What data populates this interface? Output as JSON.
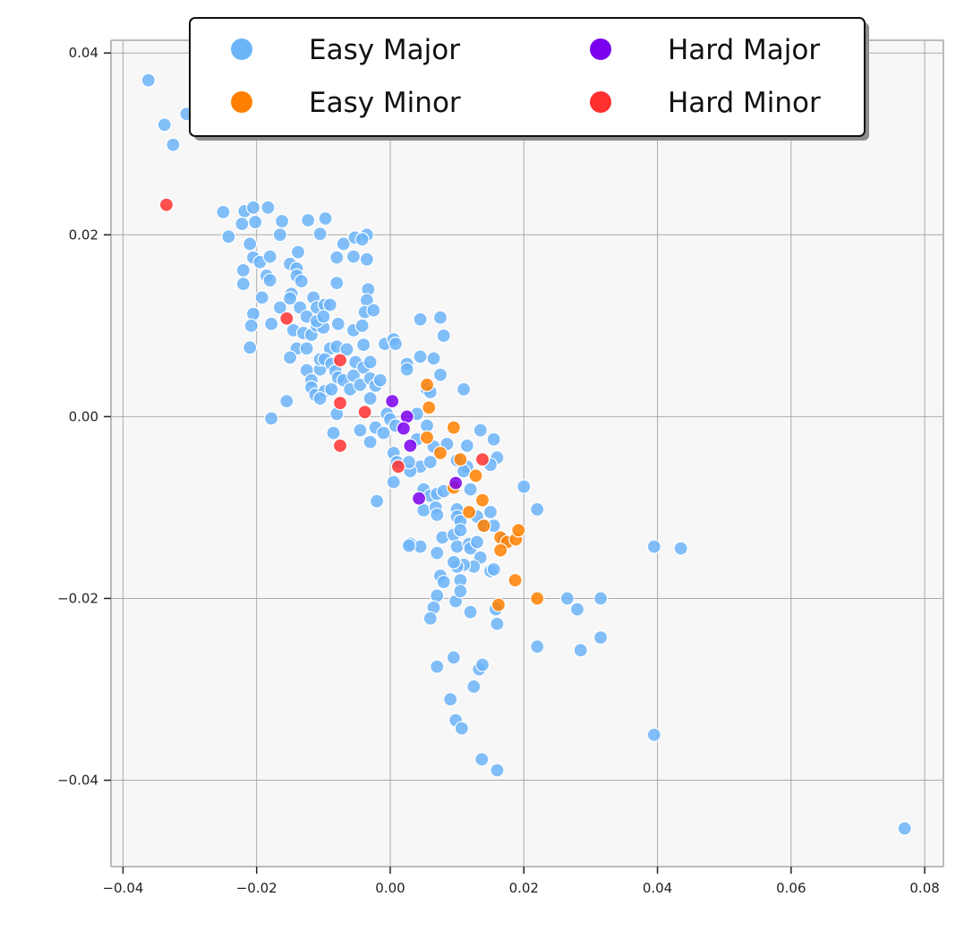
{
  "chart_data": {
    "type": "scatter",
    "title": "",
    "xlabel": "",
    "ylabel": "",
    "xlim": [
      -0.0418,
      0.0828
    ],
    "ylim": [
      -0.0495,
      0.0414
    ],
    "grid": true,
    "legend": {
      "placement": "top-center",
      "columns": 2
    },
    "x_ticks": [
      {
        "value": -0.04,
        "label": "−0.04"
      },
      {
        "value": -0.02,
        "label": "−0.02"
      },
      {
        "value": 0.0,
        "label": "0.00"
      },
      {
        "value": 0.02,
        "label": "0.02"
      },
      {
        "value": 0.04,
        "label": "0.04"
      },
      {
        "value": 0.06,
        "label": "0.06"
      },
      {
        "value": 0.08,
        "label": "0.08"
      }
    ],
    "y_ticks": [
      {
        "value": 0.04,
        "label": "0.04"
      },
      {
        "value": 0.02,
        "label": "0.02"
      },
      {
        "value": 0.0,
        "label": "0.00"
      },
      {
        "value": -0.02,
        "label": "−0.02"
      },
      {
        "value": -0.04,
        "label": "−0.04"
      }
    ],
    "series": [
      {
        "name": "Easy Major",
        "color": "#6cb4f8",
        "points": [
          [
            -0.0362,
            0.037
          ],
          [
            -0.0338,
            0.0321
          ],
          [
            -0.0325,
            0.0299
          ],
          [
            -0.0305,
            0.0333
          ],
          [
            -0.025,
            0.0225
          ],
          [
            -0.0242,
            0.0198
          ],
          [
            -0.0218,
            0.0226
          ],
          [
            -0.0222,
            0.0212
          ],
          [
            -0.0205,
            0.023
          ],
          [
            -0.0202,
            0.0214
          ],
          [
            -0.0183,
            0.023
          ],
          [
            -0.0162,
            0.0215
          ],
          [
            -0.0165,
            0.02
          ],
          [
            -0.0123,
            0.0216
          ],
          [
            -0.0097,
            0.0218
          ],
          [
            -0.0105,
            0.0201
          ],
          [
            -0.021,
            0.019
          ],
          [
            -0.0205,
            0.0175
          ],
          [
            -0.0195,
            0.017
          ],
          [
            -0.018,
            0.0176
          ],
          [
            -0.022,
            0.0161
          ],
          [
            -0.022,
            0.0146
          ],
          [
            -0.0192,
            0.0131
          ],
          [
            -0.0185,
            0.0155
          ],
          [
            -0.018,
            0.015
          ],
          [
            -0.0165,
            0.012
          ],
          [
            -0.0205,
            0.0113
          ],
          [
            -0.0208,
            0.01
          ],
          [
            -0.021,
            0.0076
          ],
          [
            -0.0178,
            0.0102
          ],
          [
            -0.015,
            0.0168
          ],
          [
            -0.014,
            0.0163
          ],
          [
            -0.0138,
            0.0181
          ],
          [
            -0.0148,
            0.0135
          ],
          [
            -0.014,
            0.0155
          ],
          [
            -0.0133,
            0.0149
          ],
          [
            -0.015,
            0.013
          ],
          [
            -0.0135,
            0.012
          ],
          [
            -0.0125,
            0.011
          ],
          [
            -0.0115,
            0.0131
          ],
          [
            -0.011,
            0.012
          ],
          [
            -0.0098,
            0.0123
          ],
          [
            -0.009,
            0.0123
          ],
          [
            -0.008,
            0.0175
          ],
          [
            -0.007,
            0.019
          ],
          [
            -0.008,
            0.0147
          ],
          [
            -0.0055,
            0.0176
          ],
          [
            -0.0053,
            0.0197
          ],
          [
            -0.0035,
            0.02
          ],
          [
            -0.0042,
            0.0195
          ],
          [
            -0.0035,
            0.0173
          ],
          [
            -0.0033,
            0.014
          ],
          [
            -0.0035,
            0.0128
          ],
          [
            -0.0038,
            0.0115
          ],
          [
            -0.0025,
            0.0117
          ],
          [
            -0.0145,
            0.0095
          ],
          [
            -0.013,
            0.0092
          ],
          [
            -0.014,
            0.0075
          ],
          [
            -0.0125,
            0.0075
          ],
          [
            -0.0118,
            0.009
          ],
          [
            -0.011,
            0.01
          ],
          [
            -0.01,
            0.0098
          ],
          [
            -0.009,
            0.0075
          ],
          [
            -0.008,
            0.0077
          ],
          [
            -0.0078,
            0.0102
          ],
          [
            -0.0065,
            0.0074
          ],
          [
            -0.0055,
            0.0095
          ],
          [
            -0.0042,
            0.01
          ],
          [
            -0.004,
            0.0079
          ],
          [
            -0.015,
            0.0065
          ],
          [
            -0.0125,
            0.0051
          ],
          [
            -0.0118,
            0.004
          ],
          [
            -0.0118,
            0.0032
          ],
          [
            -0.0112,
            0.0024
          ],
          [
            -0.0105,
            0.0052
          ],
          [
            -0.0105,
            0.0063
          ],
          [
            -0.0098,
            0.0063
          ],
          [
            -0.0088,
            0.0058
          ],
          [
            -0.0082,
            0.005
          ],
          [
            -0.0078,
            0.0043
          ],
          [
            -0.007,
            0.004
          ],
          [
            -0.006,
            0.003
          ],
          [
            -0.0055,
            0.0045
          ],
          [
            -0.0052,
            0.006
          ],
          [
            -0.0045,
            0.0035
          ],
          [
            -0.004,
            0.0054
          ],
          [
            -0.003,
            0.006
          ],
          [
            -0.003,
            0.0042
          ],
          [
            -0.0022,
            0.0034
          ],
          [
            -0.0015,
            0.004
          ],
          [
            -0.003,
            0.002
          ],
          [
            -0.0008,
            0.008
          ],
          [
            0.0005,
            0.0085
          ],
          [
            0.0008,
            0.008
          ],
          [
            -0.0098,
            0.0028
          ],
          [
            -0.0105,
            0.002
          ],
          [
            -0.0088,
            0.003
          ],
          [
            -0.011,
            0.0105
          ],
          [
            -0.01,
            0.011
          ],
          [
            -0.0155,
            0.0017
          ],
          [
            -0.0178,
            -0.0002
          ],
          [
            -0.008,
            0.0003
          ],
          [
            -0.0085,
            -0.0018
          ],
          [
            -0.0045,
            -0.0015
          ],
          [
            -0.003,
            -0.0028
          ],
          [
            -0.0022,
            -0.0012
          ],
          [
            -0.001,
            -0.0018
          ],
          [
            -0.0005,
            0.0003
          ],
          [
            0.0,
            -0.0003
          ],
          [
            0.0008,
            -0.001
          ],
          [
            -0.002,
            -0.0093
          ],
          [
            0.0045,
            0.0107
          ],
          [
            0.0075,
            0.0109
          ],
          [
            0.008,
            0.0089
          ],
          [
            0.0045,
            0.0066
          ],
          [
            0.0065,
            0.0064
          ],
          [
            0.0025,
            0.0058
          ],
          [
            0.0025,
            0.0052
          ],
          [
            0.0075,
            0.0046
          ],
          [
            0.0055,
            0.003
          ],
          [
            0.006,
            0.0027
          ],
          [
            0.011,
            0.003
          ],
          [
            0.004,
            0.0003
          ],
          [
            0.0055,
            -0.001
          ],
          [
            0.004,
            -0.0025
          ],
          [
            0.0065,
            -0.0033
          ],
          [
            0.0085,
            -0.003
          ],
          [
            0.01,
            -0.0048
          ],
          [
            0.0115,
            -0.0032
          ],
          [
            0.0135,
            -0.0015
          ],
          [
            0.0155,
            -0.0025
          ],
          [
            0.016,
            -0.0045
          ],
          [
            0.015,
            -0.0053
          ],
          [
            0.0115,
            -0.0055
          ],
          [
            0.011,
            -0.006
          ],
          [
            0.0005,
            -0.004
          ],
          [
            0.001,
            -0.005
          ],
          [
            0.0005,
            -0.0072
          ],
          [
            0.0045,
            -0.0055
          ],
          [
            0.005,
            -0.008
          ],
          [
            0.006,
            -0.005
          ],
          [
            0.003,
            -0.006
          ],
          [
            0.0028,
            -0.005
          ],
          [
            0.006,
            -0.0087
          ],
          [
            0.007,
            -0.0085
          ],
          [
            0.008,
            -0.0082
          ],
          [
            0.005,
            -0.0103
          ],
          [
            0.0068,
            -0.01
          ],
          [
            0.007,
            -0.0108
          ],
          [
            0.01,
            -0.0102
          ],
          [
            0.01,
            -0.011
          ],
          [
            0.0105,
            -0.0115
          ],
          [
            0.012,
            -0.008
          ],
          [
            0.013,
            -0.011
          ],
          [
            0.014,
            -0.012
          ],
          [
            0.015,
            -0.0105
          ],
          [
            0.0155,
            -0.012
          ],
          [
            0.017,
            -0.0135
          ],
          [
            0.02,
            -0.0077
          ],
          [
            0.022,
            -0.0102
          ],
          [
            0.003,
            -0.014
          ],
          [
            0.0045,
            -0.0143
          ],
          [
            0.0028,
            -0.0142
          ],
          [
            0.007,
            -0.015
          ],
          [
            0.0078,
            -0.0133
          ],
          [
            0.0095,
            -0.013
          ],
          [
            0.01,
            -0.0143
          ],
          [
            0.0105,
            -0.0125
          ],
          [
            0.0118,
            -0.014
          ],
          [
            0.012,
            -0.0145
          ],
          [
            0.013,
            -0.0138
          ],
          [
            0.0135,
            -0.0155
          ],
          [
            0.0125,
            -0.0165
          ],
          [
            0.011,
            -0.0163
          ],
          [
            0.01,
            -0.0165
          ],
          [
            0.0095,
            -0.016
          ],
          [
            0.0075,
            -0.0175
          ],
          [
            0.008,
            -0.0182
          ],
          [
            0.0105,
            -0.018
          ],
          [
            0.015,
            -0.017
          ],
          [
            0.0155,
            -0.0168
          ],
          [
            0.007,
            -0.0197
          ],
          [
            0.0065,
            -0.021
          ],
          [
            0.006,
            -0.0222
          ],
          [
            0.0098,
            -0.0203
          ],
          [
            0.0105,
            -0.0192
          ],
          [
            0.012,
            -0.0215
          ],
          [
            0.0158,
            -0.0212
          ],
          [
            0.016,
            -0.0228
          ],
          [
            0.022,
            -0.0253
          ],
          [
            0.0265,
            -0.02
          ],
          [
            0.028,
            -0.0212
          ],
          [
            0.0285,
            -0.0257
          ],
          [
            0.0315,
            -0.02
          ],
          [
            0.0315,
            -0.0243
          ],
          [
            0.0395,
            -0.0143
          ],
          [
            0.0435,
            -0.0145
          ],
          [
            0.0395,
            -0.035
          ],
          [
            0.007,
            -0.0275
          ],
          [
            0.0095,
            -0.0265
          ],
          [
            0.0133,
            -0.0278
          ],
          [
            0.0138,
            -0.0273
          ],
          [
            0.0125,
            -0.0297
          ],
          [
            0.009,
            -0.0311
          ],
          [
            0.0098,
            -0.0334
          ],
          [
            0.0107,
            -0.0343
          ],
          [
            0.0137,
            -0.0377
          ],
          [
            0.016,
            -0.0389
          ],
          [
            0.077,
            -0.0453
          ]
        ]
      },
      {
        "name": "Easy Minor",
        "color": "#ff8000",
        "points": [
          [
            0.0055,
            0.0035
          ],
          [
            0.0058,
            0.001
          ],
          [
            0.0095,
            -0.0012
          ],
          [
            0.0055,
            -0.0023
          ],
          [
            0.0075,
            -0.004
          ],
          [
            0.0105,
            -0.0047
          ],
          [
            0.0128,
            -0.0065
          ],
          [
            0.0095,
            -0.0078
          ],
          [
            0.0138,
            -0.0092
          ],
          [
            0.0118,
            -0.0105
          ],
          [
            0.014,
            -0.012
          ],
          [
            0.0165,
            -0.0133
          ],
          [
            0.0175,
            -0.0138
          ],
          [
            0.0188,
            -0.0135
          ],
          [
            0.0192,
            -0.0125
          ],
          [
            0.0165,
            -0.0147
          ],
          [
            0.0187,
            -0.018
          ],
          [
            0.0162,
            -0.0207
          ],
          [
            0.022,
            -0.02
          ]
        ]
      },
      {
        "name": "Hard Major",
        "color": "#7b00ee",
        "points": [
          [
            0.0003,
            0.0017
          ],
          [
            0.0025,
            0.0
          ],
          [
            0.002,
            -0.0013
          ],
          [
            0.003,
            -0.0032
          ],
          [
            0.0098,
            -0.0073
          ],
          [
            0.0043,
            -0.009
          ]
        ]
      },
      {
        "name": "Hard Minor",
        "color": "#ff3030",
        "points": [
          [
            -0.0335,
            0.0233
          ],
          [
            -0.0155,
            0.0108
          ],
          [
            -0.0075,
            0.0062
          ],
          [
            -0.0075,
            0.0015
          ],
          [
            -0.0075,
            -0.0032
          ],
          [
            -0.0038,
            0.0005
          ],
          [
            0.0012,
            -0.0055
          ],
          [
            0.0138,
            -0.0047
          ]
        ]
      }
    ]
  }
}
